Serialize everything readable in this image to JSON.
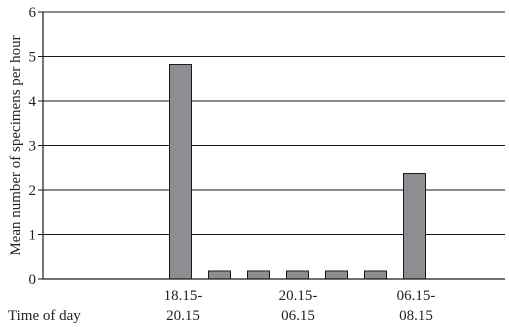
{
  "chart_data": {
    "type": "bar",
    "ylabel": "Mean number of specimens per hour",
    "xlabel": "Time of day",
    "ylim": [
      0,
      6
    ],
    "yticks": [
      0,
      1,
      2,
      3,
      4,
      5,
      6
    ],
    "grid": true,
    "series": [
      {
        "values": [
          4.82,
          0.18,
          0.18,
          0.18,
          0.18,
          0.18,
          2.37
        ]
      }
    ],
    "x_tick_labels": [
      {
        "line1": "18.15-",
        "line2": "20.15"
      },
      {
        "line1": "20.15-",
        "line2": "06.15"
      },
      {
        "line1": "06.15-",
        "line2": "08.15"
      }
    ],
    "colors": {
      "bar_fill": "#8e8e92",
      "bar_stroke": "#1a1a1a",
      "grid": "#1a1a1a",
      "axis": "#1a1a1a"
    }
  }
}
